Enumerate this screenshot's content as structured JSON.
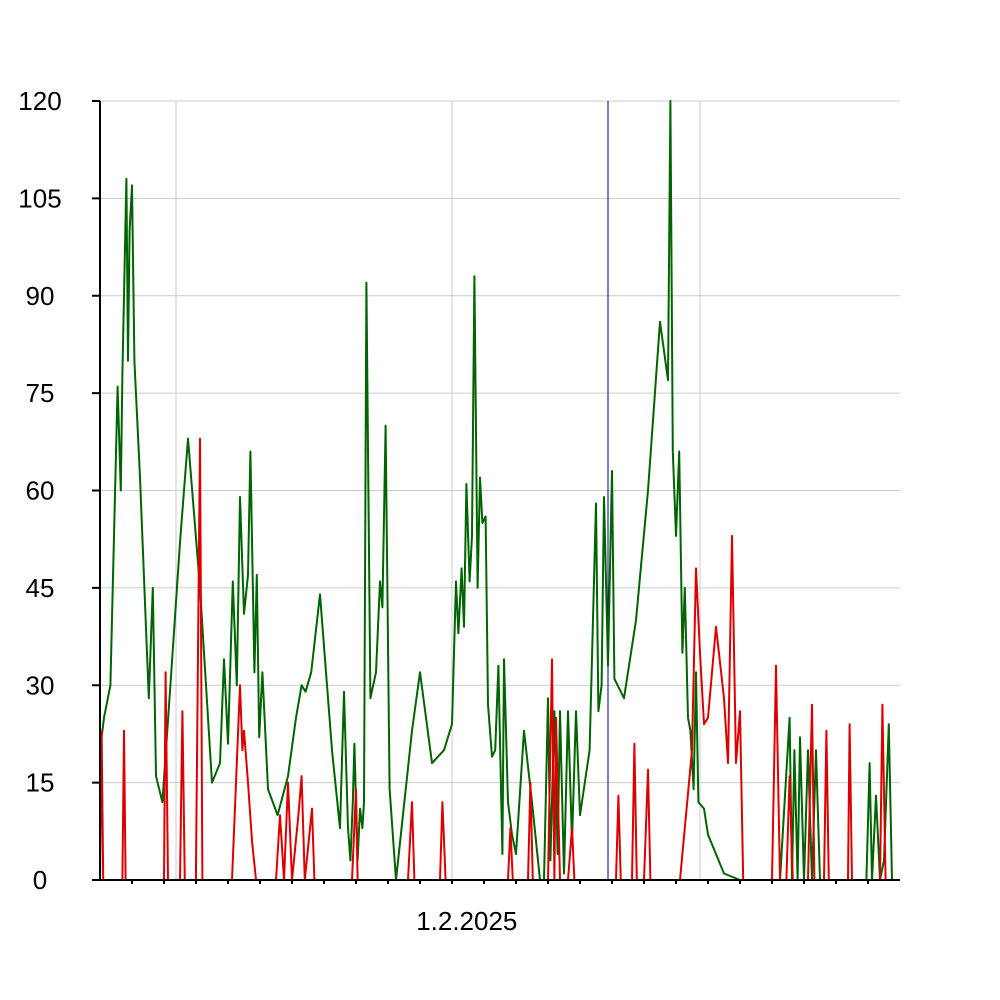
{
  "chart_data": {
    "type": "line",
    "title": "",
    "xlabel": "",
    "ylabel": "",
    "ylim": [
      0,
      120
    ],
    "yticks": [
      "0",
      "15",
      "30",
      "45",
      "60",
      "75",
      "90",
      "105",
      "120"
    ],
    "x_tick_labels": [
      {
        "label": "1.2.2025",
        "x": 0.446
      }
    ],
    "grid": true,
    "legend": "none",
    "marker_line": {
      "x": 0.635,
      "color": "#000080"
    },
    "series": [
      {
        "color": "#006400",
        "points": [
          [
            0.0,
            20
          ],
          [
            0.005,
            25
          ],
          [
            0.013,
            30
          ],
          [
            0.022,
            76
          ],
          [
            0.026,
            60
          ],
          [
            0.028,
            78
          ],
          [
            0.033,
            108
          ],
          [
            0.035,
            80
          ],
          [
            0.037,
            100
          ],
          [
            0.04,
            107
          ],
          [
            0.043,
            80
          ],
          [
            0.05,
            62
          ],
          [
            0.061,
            28
          ],
          [
            0.066,
            45
          ],
          [
            0.07,
            16
          ],
          [
            0.078,
            12
          ],
          [
            0.088,
            30
          ],
          [
            0.1,
            52
          ],
          [
            0.11,
            68
          ],
          [
            0.125,
            45
          ],
          [
            0.14,
            15
          ],
          [
            0.15,
            18
          ],
          [
            0.155,
            34
          ],
          [
            0.16,
            21
          ],
          [
            0.166,
            46
          ],
          [
            0.171,
            30
          ],
          [
            0.175,
            59
          ],
          [
            0.18,
            41
          ],
          [
            0.185,
            47
          ],
          [
            0.188,
            66
          ],
          [
            0.193,
            32
          ],
          [
            0.196,
            47
          ],
          [
            0.199,
            22
          ],
          [
            0.203,
            32
          ],
          [
            0.21,
            14
          ],
          [
            0.222,
            10
          ],
          [
            0.235,
            16
          ],
          [
            0.245,
            25
          ],
          [
            0.252,
            30
          ],
          [
            0.257,
            29
          ],
          [
            0.264,
            32
          ],
          [
            0.275,
            44
          ],
          [
            0.29,
            20
          ],
          [
            0.3,
            8
          ],
          [
            0.305,
            29
          ],
          [
            0.31,
            8
          ],
          [
            0.313,
            3
          ],
          [
            0.316,
            12
          ],
          [
            0.318,
            21
          ],
          [
            0.322,
            3
          ],
          [
            0.325,
            11
          ],
          [
            0.328,
            8
          ],
          [
            0.33,
            12
          ],
          [
            0.333,
            92
          ],
          [
            0.338,
            28
          ],
          [
            0.345,
            32
          ],
          [
            0.35,
            46
          ],
          [
            0.353,
            42
          ],
          [
            0.357,
            70
          ],
          [
            0.362,
            14
          ],
          [
            0.37,
            0
          ],
          [
            0.39,
            23
          ],
          [
            0.4,
            32
          ],
          [
            0.415,
            18
          ],
          [
            0.43,
            20
          ],
          [
            0.44,
            24
          ],
          [
            0.445,
            46
          ],
          [
            0.448,
            38
          ],
          [
            0.452,
            48
          ],
          [
            0.455,
            39
          ],
          [
            0.458,
            61
          ],
          [
            0.462,
            46
          ],
          [
            0.465,
            53
          ],
          [
            0.468,
            93
          ],
          [
            0.472,
            45
          ],
          [
            0.475,
            62
          ],
          [
            0.478,
            55
          ],
          [
            0.482,
            56
          ],
          [
            0.485,
            27
          ],
          [
            0.49,
            19
          ],
          [
            0.494,
            20
          ],
          [
            0.498,
            33
          ],
          [
            0.503,
            4
          ],
          [
            0.505,
            34
          ],
          [
            0.51,
            12
          ],
          [
            0.515,
            7
          ],
          [
            0.52,
            4
          ],
          [
            0.53,
            23
          ],
          [
            0.54,
            12
          ],
          [
            0.55,
            0
          ],
          [
            0.555,
            0
          ],
          [
            0.56,
            28
          ],
          [
            0.563,
            3
          ],
          [
            0.568,
            26
          ],
          [
            0.572,
            4
          ],
          [
            0.575,
            26
          ],
          [
            0.58,
            1
          ],
          [
            0.585,
            26
          ],
          [
            0.59,
            6
          ],
          [
            0.595,
            26
          ],
          [
            0.6,
            10
          ],
          [
            0.612,
            20
          ],
          [
            0.62,
            58
          ],
          [
            0.623,
            26
          ],
          [
            0.627,
            30
          ],
          [
            0.63,
            59
          ],
          [
            0.635,
            33
          ],
          [
            0.64,
            63
          ],
          [
            0.643,
            31
          ],
          [
            0.655,
            28
          ],
          [
            0.67,
            40
          ],
          [
            0.685,
            60
          ],
          [
            0.7,
            86
          ],
          [
            0.71,
            77
          ],
          [
            0.713,
            120
          ],
          [
            0.716,
            66
          ],
          [
            0.72,
            53
          ],
          [
            0.724,
            66
          ],
          [
            0.728,
            35
          ],
          [
            0.731,
            45
          ],
          [
            0.735,
            25
          ],
          [
            0.738,
            23
          ],
          [
            0.742,
            14
          ],
          [
            0.745,
            32
          ],
          [
            0.748,
            12
          ],
          [
            0.755,
            11
          ],
          [
            0.76,
            7
          ],
          [
            0.78,
            1
          ],
          [
            0.8,
            0
          ],
          [
            0.83,
            0
          ],
          [
            0.85,
            0
          ],
          [
            0.862,
            25
          ],
          [
            0.865,
            0
          ],
          [
            0.868,
            20
          ],
          [
            0.872,
            0
          ],
          [
            0.875,
            22
          ],
          [
            0.88,
            0
          ],
          [
            0.885,
            20
          ],
          [
            0.89,
            0
          ],
          [
            0.895,
            20
          ],
          [
            0.9,
            0
          ],
          [
            0.91,
            0
          ],
          [
            0.92,
            0
          ],
          [
            0.93,
            0
          ],
          [
            0.94,
            0
          ],
          [
            0.958,
            0
          ],
          [
            0.962,
            18
          ],
          [
            0.965,
            0
          ],
          [
            0.97,
            13
          ],
          [
            0.975,
            0
          ],
          [
            0.98,
            3
          ],
          [
            0.986,
            24
          ],
          [
            0.99,
            0
          ],
          [
            1.0,
            0
          ]
        ]
      },
      {
        "color": "#dd0000",
        "points": [
          [
            0.0,
            0
          ],
          [
            0.002,
            23
          ],
          [
            0.004,
            0
          ],
          [
            0.006,
            0
          ],
          [
            0.028,
            0
          ],
          [
            0.03,
            23
          ],
          [
            0.032,
            0
          ],
          [
            0.08,
            0
          ],
          [
            0.082,
            32
          ],
          [
            0.085,
            0
          ],
          [
            0.1,
            0
          ],
          [
            0.103,
            26
          ],
          [
            0.106,
            0
          ],
          [
            0.12,
            0
          ],
          [
            0.12,
            2
          ],
          [
            0.125,
            68
          ],
          [
            0.128,
            0
          ],
          [
            0.165,
            0
          ],
          [
            0.17,
            15
          ],
          [
            0.175,
            30
          ],
          [
            0.178,
            20
          ],
          [
            0.18,
            23
          ],
          [
            0.185,
            15
          ],
          [
            0.19,
            6
          ],
          [
            0.195,
            0
          ],
          [
            0.22,
            0
          ],
          [
            0.225,
            10
          ],
          [
            0.23,
            0
          ],
          [
            0.235,
            15
          ],
          [
            0.24,
            0
          ],
          [
            0.248,
            10
          ],
          [
            0.252,
            16
          ],
          [
            0.256,
            0
          ],
          [
            0.265,
            11
          ],
          [
            0.268,
            0
          ],
          [
            0.315,
            0
          ],
          [
            0.32,
            14
          ],
          [
            0.322,
            0
          ],
          [
            0.385,
            0
          ],
          [
            0.39,
            12
          ],
          [
            0.393,
            0
          ],
          [
            0.425,
            0
          ],
          [
            0.428,
            12
          ],
          [
            0.432,
            0
          ],
          [
            0.51,
            0
          ],
          [
            0.513,
            8
          ],
          [
            0.516,
            0
          ],
          [
            0.535,
            0
          ],
          [
            0.538,
            15
          ],
          [
            0.541,
            0
          ],
          [
            0.56,
            0
          ],
          [
            0.565,
            34
          ],
          [
            0.568,
            0
          ],
          [
            0.57,
            25
          ],
          [
            0.575,
            0
          ],
          [
            0.585,
            0
          ],
          [
            0.59,
            8
          ],
          [
            0.593,
            0
          ],
          [
            0.645,
            0
          ],
          [
            0.648,
            13
          ],
          [
            0.651,
            0
          ],
          [
            0.665,
            0
          ],
          [
            0.668,
            21
          ],
          [
            0.671,
            0
          ],
          [
            0.68,
            0
          ],
          [
            0.685,
            17
          ],
          [
            0.688,
            0
          ],
          [
            0.725,
            0
          ],
          [
            0.74,
            20
          ],
          [
            0.745,
            48
          ],
          [
            0.75,
            35
          ],
          [
            0.755,
            24
          ],
          [
            0.76,
            25
          ],
          [
            0.77,
            39
          ],
          [
            0.78,
            28
          ],
          [
            0.785,
            18
          ],
          [
            0.79,
            53
          ],
          [
            0.795,
            18
          ],
          [
            0.8,
            26
          ],
          [
            0.804,
            0
          ],
          [
            0.84,
            0
          ],
          [
            0.845,
            33
          ],
          [
            0.85,
            0
          ],
          [
            0.858,
            0
          ],
          [
            0.862,
            16
          ],
          [
            0.866,
            0
          ],
          [
            0.885,
            0
          ],
          [
            0.89,
            27
          ],
          [
            0.893,
            0
          ],
          [
            0.905,
            0
          ],
          [
            0.908,
            23
          ],
          [
            0.911,
            0
          ],
          [
            0.935,
            0
          ],
          [
            0.937,
            24
          ],
          [
            0.94,
            0
          ],
          [
            0.975,
            0
          ],
          [
            0.978,
            27
          ],
          [
            0.982,
            0
          ],
          [
            1.0,
            0
          ]
        ]
      }
    ]
  }
}
